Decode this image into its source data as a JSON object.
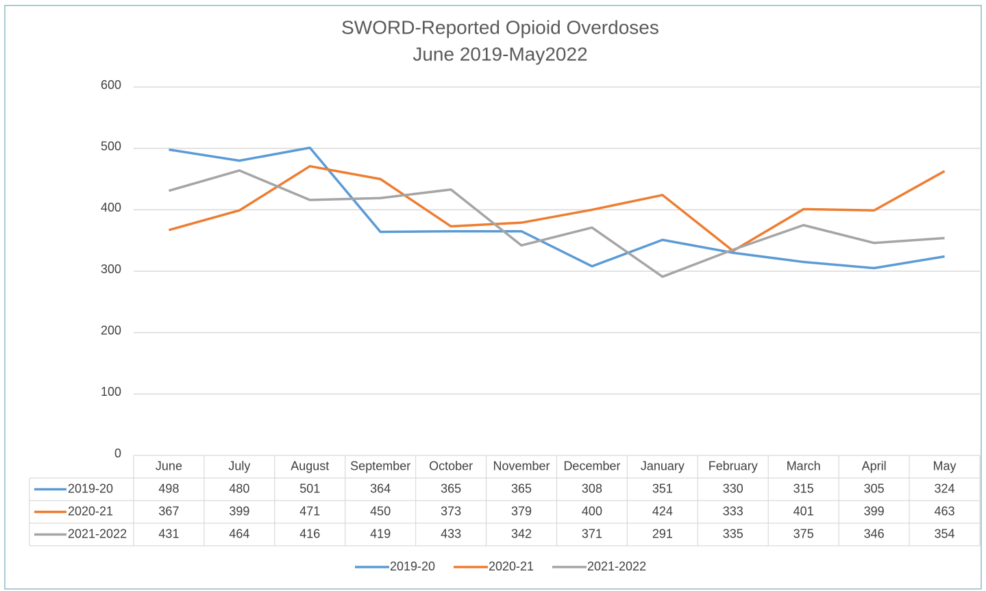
{
  "chart_data": {
    "type": "line",
    "title": "SWORD-Reported Opioid Overdoses",
    "subtitle": "June 2019-May2022",
    "categories": [
      "June",
      "July",
      "August",
      "September",
      "October",
      "November",
      "December",
      "January",
      "February",
      "March",
      "April",
      "May"
    ],
    "series": [
      {
        "name": "2019-20",
        "color": "#5b9bd5",
        "values": [
          498,
          480,
          501,
          364,
          365,
          365,
          308,
          351,
          330,
          315,
          305,
          324
        ]
      },
      {
        "name": "2020-21",
        "color": "#ed7d31",
        "values": [
          367,
          399,
          471,
          450,
          373,
          379,
          400,
          424,
          333,
          401,
          399,
          463
        ]
      },
      {
        "name": "2021-2022",
        "color": "#a5a5a5",
        "values": [
          431,
          464,
          416,
          419,
          433,
          342,
          371,
          291,
          335,
          375,
          346,
          354
        ]
      }
    ],
    "ylim": [
      0,
      600
    ],
    "yticks": [
      0,
      100,
      200,
      300,
      400,
      500,
      600
    ],
    "grid": true,
    "legend": "bottom"
  }
}
